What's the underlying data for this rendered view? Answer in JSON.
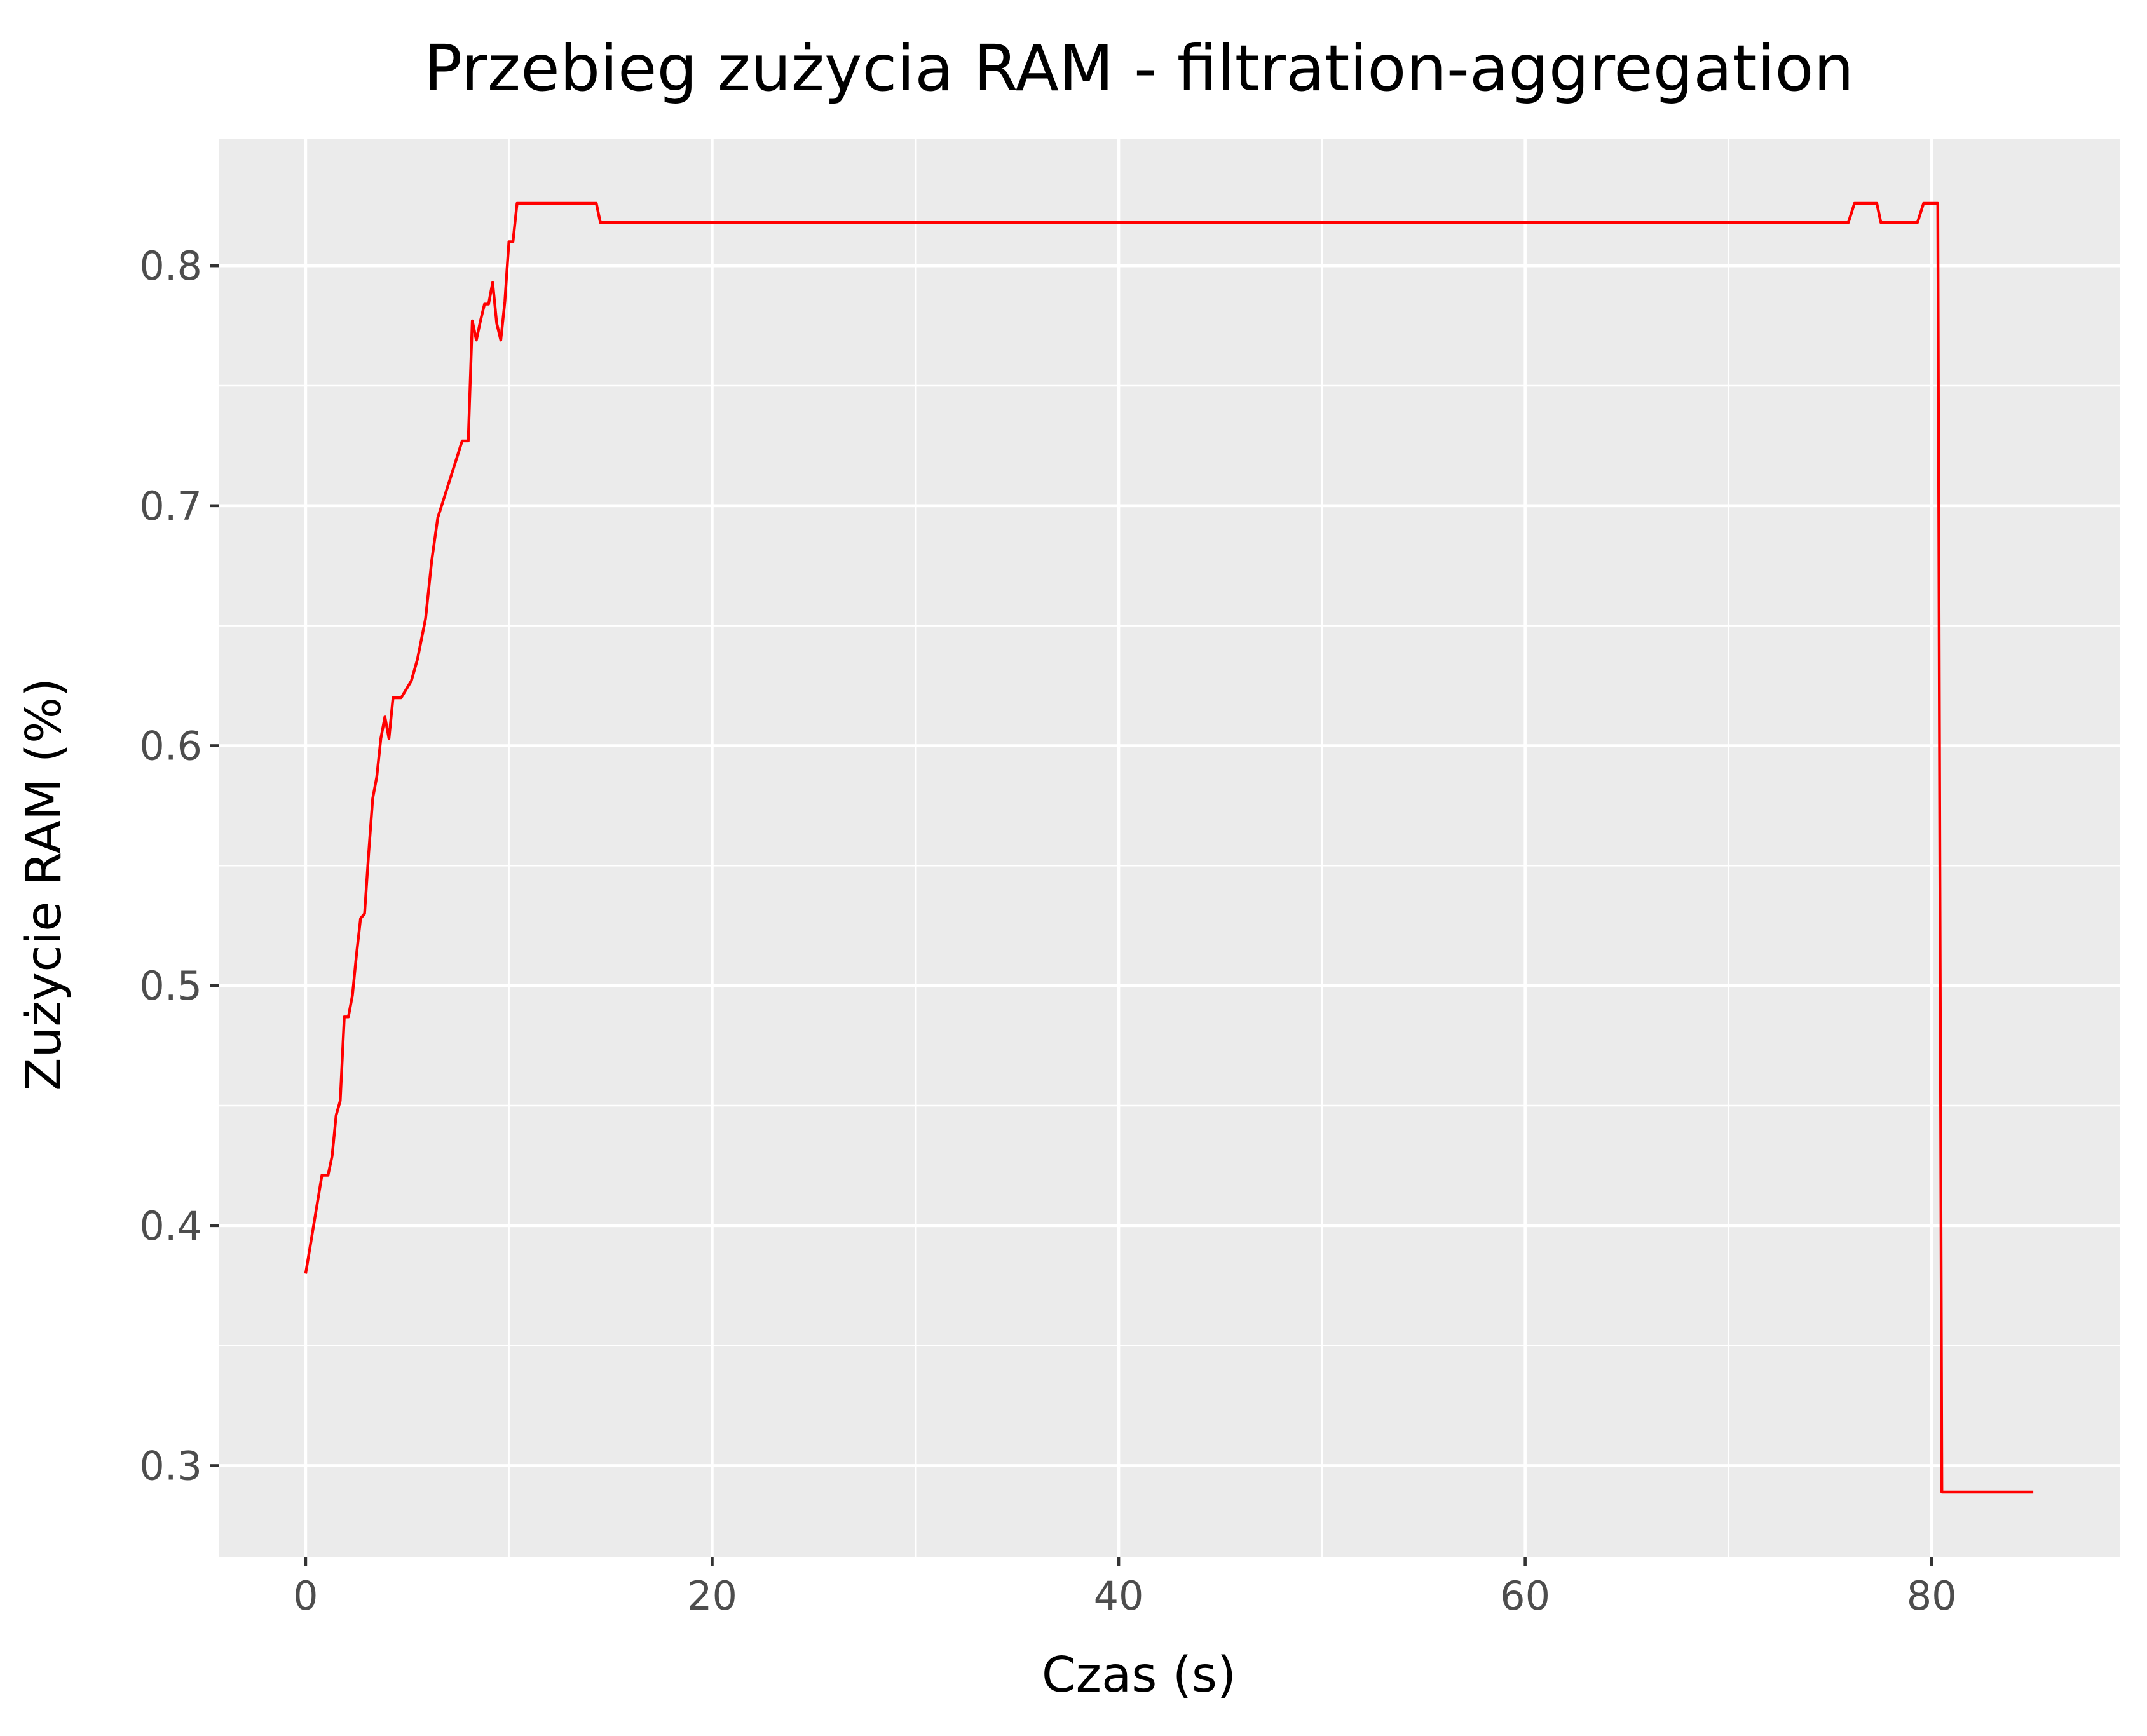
{
  "chart_data": {
    "type": "line",
    "title": "Przebieg zużycia RAM - filtration-aggregation",
    "xlabel": "Czas (s)",
    "ylabel": "Zużycie RAM (%)",
    "xlim": [
      -4.25,
      89.25
    ],
    "ylim": [
      0.262,
      0.853
    ],
    "x_ticks": [
      0,
      20,
      40,
      60,
      80
    ],
    "x_tick_labels": [
      "0",
      "20",
      "40",
      "60",
      "80"
    ],
    "x_minor_ticks": [
      10,
      30,
      50,
      70
    ],
    "y_ticks": [
      0.3,
      0.4,
      0.5,
      0.6,
      0.7,
      0.8
    ],
    "y_tick_labels": [
      "0.3",
      "0.4",
      "0.5",
      "0.6",
      "0.7",
      "0.8"
    ],
    "y_minor_ticks": [
      0.35,
      0.45,
      0.55,
      0.65,
      0.75
    ],
    "grid": true,
    "panel_color": "#ebebeb",
    "grid_color": "#ffffff",
    "line_color": "#ff0000",
    "series": [
      {
        "x": [
          0.0,
          0.8,
          1.1,
          1.3,
          1.5,
          1.7,
          1.9,
          2.1,
          2.3,
          2.5,
          2.7,
          2.9,
          3.1,
          3.3,
          3.5,
          3.7,
          3.9,
          4.1,
          4.3,
          4.5,
          4.7,
          5.2,
          5.5,
          5.9,
          6.2,
          6.5,
          6.8,
          7.1,
          7.4,
          7.7,
          8.0,
          8.2,
          8.4,
          8.6,
          8.8,
          9.0,
          9.2,
          9.4,
          9.6,
          9.8,
          10.0,
          10.2,
          10.4,
          14.3,
          14.5,
          75.9,
          76.2,
          77.3,
          77.5,
          79.3,
          79.6,
          80.3,
          80.5,
          85.0
        ],
        "y": [
          0.38,
          0.421,
          0.421,
          0.429,
          0.446,
          0.452,
          0.487,
          0.487,
          0.496,
          0.513,
          0.528,
          0.53,
          0.555,
          0.578,
          0.587,
          0.603,
          0.612,
          0.603,
          0.62,
          0.62,
          0.62,
          0.627,
          0.636,
          0.653,
          0.677,
          0.695,
          0.703,
          0.711,
          0.719,
          0.727,
          0.727,
          0.777,
          0.769,
          0.777,
          0.784,
          0.784,
          0.793,
          0.776,
          0.769,
          0.785,
          0.81,
          0.81,
          0.826,
          0.826,
          0.818,
          0.818,
          0.826,
          0.826,
          0.818,
          0.818,
          0.826,
          0.826,
          0.289,
          0.289
        ]
      }
    ]
  }
}
